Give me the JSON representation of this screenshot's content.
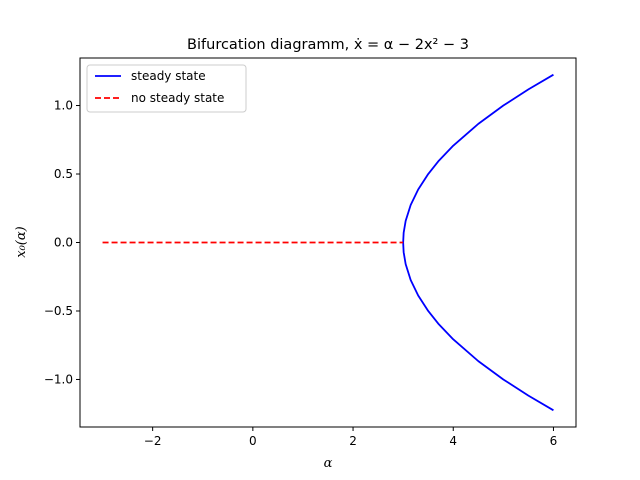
{
  "chart_data": {
    "type": "line",
    "title": "Bifurcation diagramm, ẋ = α − 2x² − 3",
    "xlabel": "α",
    "ylabel": "x₀(α)",
    "xlim": [
      -3.45,
      6.45
    ],
    "ylim": [
      -1.347,
      1.347
    ],
    "x_ticks": [
      -2,
      0,
      2,
      4,
      6
    ],
    "x_tick_labels": [
      "−2",
      "0",
      "2",
      "4",
      "6"
    ],
    "y_ticks": [
      -1.0,
      -0.5,
      0.0,
      0.5,
      1.0
    ],
    "y_tick_labels": [
      "−1.0",
      "−0.5",
      "0.0",
      "0.5",
      "1.0"
    ],
    "grid": false,
    "legend_position": "top-left",
    "series": [
      {
        "name": "steady state",
        "color": "#0000ff",
        "style": "solid",
        "x": [
          6.0,
          5.5,
          5.0,
          4.5,
          4.0,
          3.7,
          3.5,
          3.3,
          3.15,
          3.05,
          3.01,
          3.0,
          3.01,
          3.05,
          3.15,
          3.3,
          3.5,
          3.7,
          4.0,
          4.5,
          5.0,
          5.5,
          6.0
        ],
        "y": [
          1.225,
          1.118,
          1.0,
          0.866,
          0.707,
          0.592,
          0.5,
          0.387,
          0.274,
          0.158,
          0.071,
          0.0,
          -0.071,
          -0.158,
          -0.274,
          -0.387,
          -0.5,
          -0.592,
          -0.707,
          -0.866,
          -1.0,
          -1.118,
          -1.225
        ]
      },
      {
        "name": "no steady state",
        "color": "#ff0000",
        "style": "dashed",
        "x": [
          -3.0,
          3.0
        ],
        "y": [
          0.0,
          0.0
        ]
      }
    ]
  }
}
